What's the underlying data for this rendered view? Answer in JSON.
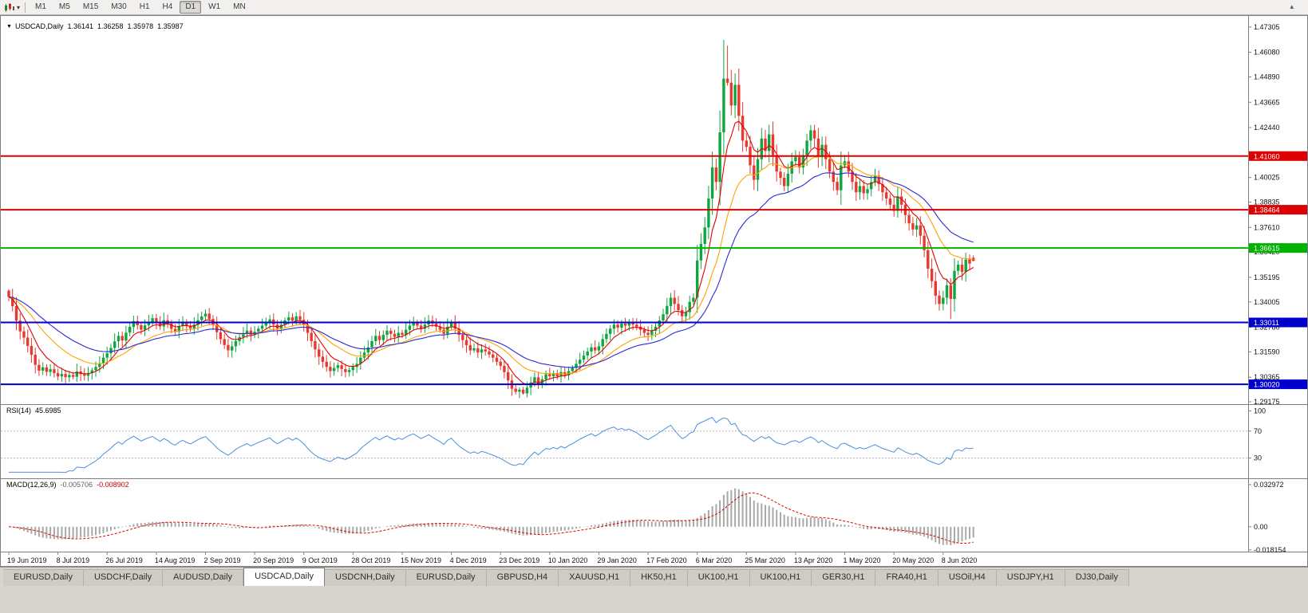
{
  "toolbar": {
    "timeframes": [
      "M1",
      "M5",
      "M15",
      "M30",
      "H1",
      "H4",
      "D1",
      "W1",
      "MN"
    ],
    "active": "D1"
  },
  "chart_header": {
    "symbol": "USDCAD,Daily",
    "open": "1.36141",
    "high": "1.36258",
    "low": "1.35978",
    "close": "1.35987"
  },
  "rsi_panel": {
    "label": "RSI(14)",
    "value": "45.6985",
    "axis": [
      "100",
      "70",
      "30"
    ]
  },
  "macd_panel": {
    "label": "MACD(12,26,9)",
    "main": "-0.005706",
    "signal": "-0.008902",
    "axis": [
      "0.032972",
      "0.00",
      "-0.018154"
    ]
  },
  "tabs": {
    "items": [
      "EURUSD,Daily",
      "USDCHF,Daily",
      "AUDUSD,Daily",
      "USDCAD,Daily",
      "USDCNH,Daily",
      "EURUSD,Daily",
      "GBPUSD,H4",
      "XAUUSD,H1",
      "HK50,H1",
      "UK100,H1",
      "UK100,H1",
      "GER30,H1",
      "FRA40,H1",
      "USOil,H4",
      "USDJPY,H1",
      "DJ30,Daily"
    ],
    "active_index": 3
  },
  "chart_data": {
    "type": "candlestick",
    "symbol": "USDCAD",
    "period": "Daily",
    "x_labels": [
      "19 Jun 2019",
      "8 Jul 2019",
      "26 Jul 2019",
      "14 Aug 2019",
      "2 Sep 2019",
      "20 Sep 2019",
      "9 Oct 2019",
      "28 Oct 2019",
      "15 Nov 2019",
      "4 Dec 2019",
      "23 Dec 2019",
      "10 Jan 2020",
      "29 Jan 2020",
      "17 Feb 2020",
      "6 Mar 2020",
      "25 Mar 2020",
      "13 Apr 2020",
      "1 May 2020",
      "20 May 2020",
      "8 Jun 2020"
    ],
    "bars_per_label": 13,
    "first_open": 1.3455,
    "closes": [
      1.3425,
      1.338,
      1.331,
      1.3258,
      1.3228,
      1.3188,
      1.3145,
      1.3096,
      1.3068,
      1.3084,
      1.3062,
      1.3075,
      1.3056,
      1.304,
      1.3052,
      1.3036,
      1.3047,
      1.3038,
      1.3064,
      1.3051,
      1.3043,
      1.3056,
      1.307,
      1.3086,
      1.3104,
      1.3131,
      1.3152,
      1.3178,
      1.321,
      1.3236,
      1.3214,
      1.3252,
      1.328,
      1.3308,
      1.3288,
      1.3266,
      1.3287,
      1.3304,
      1.3322,
      1.3301,
      1.3282,
      1.3312,
      1.3296,
      1.327,
      1.3256,
      1.3284,
      1.3302,
      1.3286,
      1.3272,
      1.3291,
      1.3312,
      1.333,
      1.3344,
      1.3318,
      1.329,
      1.3254,
      1.3221,
      1.3192,
      1.3166,
      1.3186,
      1.3211,
      1.323,
      1.3246,
      1.3262,
      1.3241,
      1.3256,
      1.3271,
      1.3286,
      1.3301,
      1.3316,
      1.3291,
      1.3272,
      1.329,
      1.3311,
      1.3326,
      1.3309,
      1.3331,
      1.3314,
      1.3289,
      1.3251,
      1.3211,
      1.3171,
      1.3136,
      1.3111,
      1.3086,
      1.3066,
      1.3081,
      1.3094,
      1.3076,
      1.3061,
      1.3071,
      1.3086,
      1.3101,
      1.3131,
      1.3156,
      1.3181,
      1.3211,
      1.3236,
      1.3216,
      1.3241,
      1.3261,
      1.3246,
      1.3231,
      1.3251,
      1.3241,
      1.3266,
      1.3286,
      1.3301,
      1.3286,
      1.3271,
      1.3291,
      1.3311,
      1.3296,
      1.3281,
      1.3266,
      1.3246,
      1.3281,
      1.3301,
      1.3271,
      1.3241,
      1.3216,
      1.3191,
      1.3166,
      1.3176,
      1.3156,
      1.3171,
      1.3161,
      1.3146,
      1.3131,
      1.3111,
      1.3091,
      1.3061,
      1.3021,
      1.2981,
      1.2966,
      1.2976,
      1.2958,
      1.2986,
      1.3011,
      1.3036,
      1.3001,
      1.3026,
      1.3051,
      1.3041,
      1.3056,
      1.3041,
      1.3061,
      1.3046,
      1.3066,
      1.3081,
      1.3101,
      1.3121,
      1.3141,
      1.3161,
      1.3181,
      1.3166,
      1.3186,
      1.3221,
      1.3246,
      1.3271,
      1.3291,
      1.3276,
      1.3296,
      1.3286,
      1.3301,
      1.3291,
      1.3281,
      1.3266,
      1.3251,
      1.3241,
      1.3261,
      1.3281,
      1.3311,
      1.3341,
      1.3381,
      1.3421,
      1.3391,
      1.3361,
      1.3331,
      1.3351,
      1.3401,
      1.3421,
      1.3601,
      1.3681,
      1.3761,
      1.3901,
      1.4051,
      1.3981,
      1.4221,
      1.4481,
      1.4461,
      1.4351,
      1.4451,
      1.4301,
      1.4181,
      1.4151,
      1.4061,
      1.3991,
      1.4091,
      1.4191,
      1.4131,
      1.4211,
      1.4111,
      1.4031,
      1.4001,
      1.3961,
      1.4021,
      1.4081,
      1.4101,
      1.4051,
      1.4111,
      1.4181,
      1.4231,
      1.4191,
      1.4101,
      1.4161,
      1.4091,
      1.4031,
      1.3981,
      1.3941,
      1.4061,
      1.4081,
      1.4031,
      1.3981,
      1.3931,
      1.3961,
      1.3926,
      1.3946,
      1.3981,
      1.4011,
      1.3971,
      1.3931,
      1.3901,
      1.3871,
      1.3841,
      1.3911,
      1.3871,
      1.3821,
      1.3781,
      1.3751,
      1.3771,
      1.3721,
      1.3651,
      1.3561,
      1.3501,
      1.3431,
      1.3391,
      1.3421,
      1.3481,
      1.3415,
      1.3551,
      1.3581,
      1.3546,
      1.3606,
      1.3586,
      1.35987
    ],
    "last_bar_ohlc": [
      1.36141,
      1.36258,
      1.35978,
      1.35987
    ],
    "high_overrides": {
      "0": 1.3462,
      "189": 1.4668,
      "190": 1.464,
      "193": 1.453
    },
    "low_overrides": {
      "136": 1.2951,
      "246": 1.3358,
      "249": 1.3317
    },
    "price_ticks": [
      "1.47305",
      "1.46080",
      "1.44890",
      "1.43665",
      "1.42440",
      "1.40025",
      "1.38835",
      "1.37610",
      "1.36420",
      "1.35195",
      "1.34005",
      "1.32780",
      "1.31590",
      "1.30365",
      "1.29175"
    ],
    "ylim": [
      1.2906,
      1.4784
    ],
    "hlines": [
      {
        "price": 1.4106,
        "label": "1.41060",
        "color": "#dd0000",
        "width": 2
      },
      {
        "price": 1.38464,
        "label": "1.38464",
        "color": "#dd0000",
        "width": 2
      },
      {
        "price": 1.36615,
        "label": "1.36615",
        "color": "#00b300",
        "width": 2
      },
      {
        "price": 1.33011,
        "label": "1.33011",
        "color": "#0000cc",
        "width": 2
      },
      {
        "price": 1.3002,
        "label": "1.30020",
        "color": "#0000cc",
        "width": 2
      }
    ],
    "moving_averages": [
      {
        "period": 7,
        "color": "#e60000"
      },
      {
        "period": 18,
        "color": "#ffa200"
      },
      {
        "period": 32,
        "color": "#2a2ad4"
      }
    ],
    "indicators": {
      "rsi": {
        "period": 14,
        "levels": [
          70,
          30
        ],
        "range": [
          0,
          110
        ],
        "color": "#4a90d9",
        "current": 45.6985
      },
      "macd": {
        "fast": 12,
        "slow": 26,
        "signal": 9,
        "range": [
          -0.0195,
          0.038
        ],
        "hist_color": "#a8a8a8",
        "signal_color": "#e60000",
        "current_main": -0.005706,
        "current_signal": -0.008902
      }
    },
    "up_color": "#0fa640",
    "down_color": "#e8392f"
  }
}
